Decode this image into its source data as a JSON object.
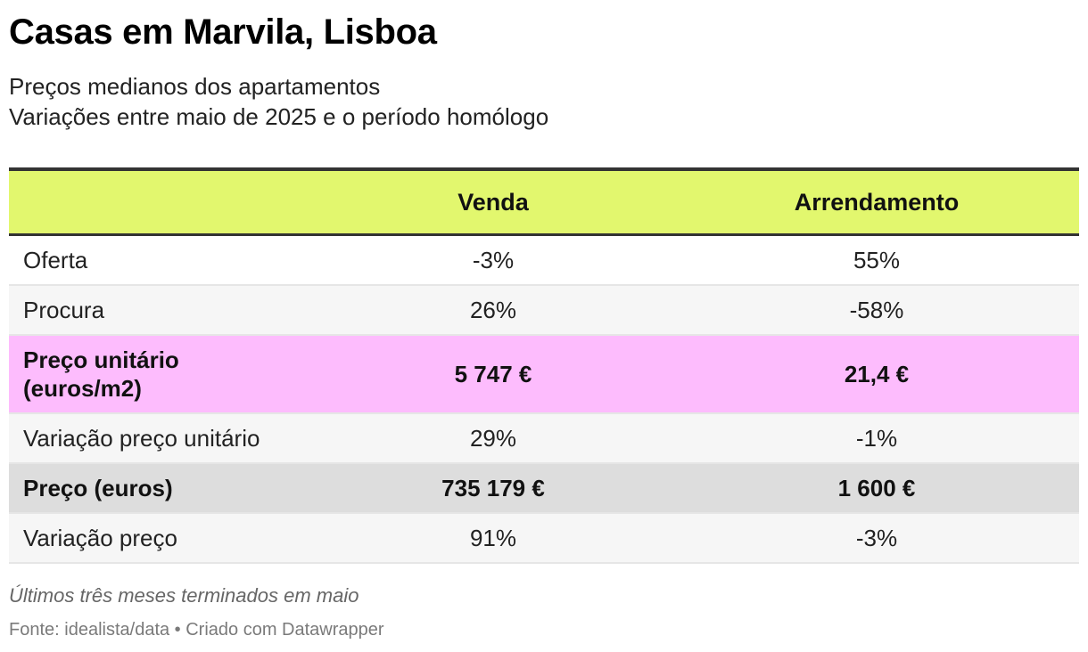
{
  "title": "Casas em Marvila, Lisboa",
  "subtitle_line1": "Preços medianos dos apartamentos",
  "subtitle_line2": "Variações entre maio de 2025 e o período homólogo",
  "colors": {
    "header_bg": "#e2f76e",
    "highlight_unit_price": "#fdbcfd",
    "highlight_price": "#dddddd",
    "row_bg_white": "#ffffff",
    "row_bg_grey": "#f6f6f6",
    "rule": "#333333"
  },
  "chart_data": {
    "type": "table",
    "columns": [
      "",
      "Venda",
      "Arrendamento"
    ],
    "rows": [
      {
        "label": "Oferta",
        "venda": "-3%",
        "arrendamento": "55%",
        "bold": false,
        "bg": "#ffffff",
        "height": 54
      },
      {
        "label": "Procura",
        "venda": "26%",
        "arrendamento": "-58%",
        "bold": false,
        "bg": "#f6f6f6",
        "height": 54
      },
      {
        "label": "Preço unitário\n(euros/m2)",
        "venda": "5 747 €",
        "arrendamento": "21,4 €",
        "bold": true,
        "bg": "#fdbcfd",
        "height": 86
      },
      {
        "label": "Variação preço unitário",
        "venda": "29%",
        "arrendamento": "-1%",
        "bold": false,
        "bg": "#f6f6f6",
        "height": 54
      },
      {
        "label": "Preço (euros)",
        "venda": "735 179 €",
        "arrendamento": "1 600 €",
        "bold": true,
        "bg": "#dddddd",
        "height": 54
      },
      {
        "label": "Variação preço",
        "venda": "91%",
        "arrendamento": "-3%",
        "bold": false,
        "bg": "#f6f6f6",
        "height": 54
      }
    ]
  },
  "notes": "Últimos três meses terminados em maio",
  "source": "Fonte: idealista/data • Criado com Datawrapper"
}
